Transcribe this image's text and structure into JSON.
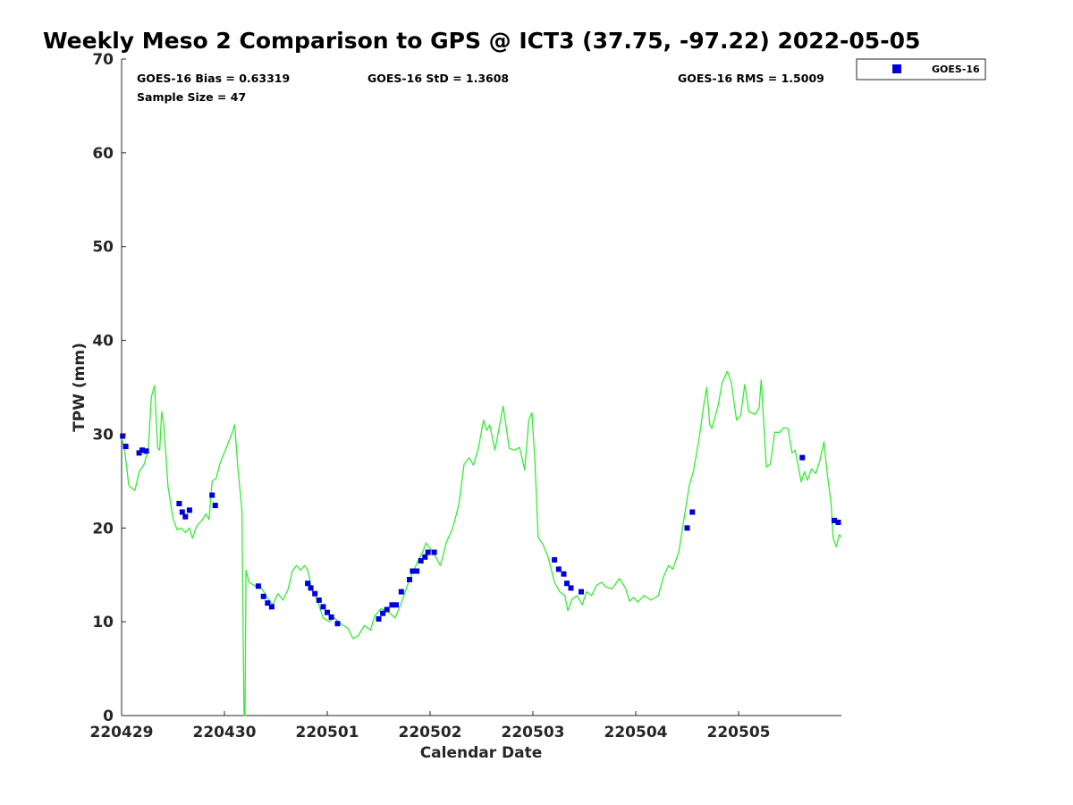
{
  "chart_data": {
    "type": "scatter",
    "title": "Weekly Meso 2 Comparison to GPS @ ICT3 (37.75, -97.22) 2022-05-05",
    "xlabel": "Calendar Date",
    "ylabel": "TPW (mm)",
    "xlim": [
      0,
      7
    ],
    "ylim": [
      0,
      70
    ],
    "x_tick_labels": [
      "220429",
      "220430",
      "220501",
      "220502",
      "220503",
      "220504",
      "220505"
    ],
    "x_tick_values": [
      0,
      1,
      2,
      3,
      4,
      5,
      6
    ],
    "y_ticks": [
      0,
      10,
      20,
      30,
      40,
      50,
      60,
      70
    ],
    "grid": false,
    "legend_position": "top-right",
    "stats": {
      "bias": "GOES-16 Bias = 0.63319",
      "std": "GOES-16 StD = 1.3608",
      "rms": "GOES-16 RMS = 1.5009",
      "sample": "Sample Size = 47"
    },
    "series": [
      {
        "name": "GOES-16",
        "marker": "square",
        "color": "#0000dd",
        "points": [
          [
            0.01,
            29.8
          ],
          [
            0.04,
            28.7
          ],
          [
            0.17,
            28.0
          ],
          [
            0.2,
            28.3
          ],
          [
            0.24,
            28.2
          ],
          [
            0.56,
            22.6
          ],
          [
            0.59,
            21.7
          ],
          [
            0.62,
            21.2
          ],
          [
            0.66,
            21.9
          ],
          [
            0.88,
            23.5
          ],
          [
            0.91,
            22.4
          ],
          [
            1.33,
            13.8
          ],
          [
            1.38,
            12.7
          ],
          [
            1.42,
            12.0
          ],
          [
            1.46,
            11.6
          ],
          [
            1.81,
            14.1
          ],
          [
            1.84,
            13.6
          ],
          [
            1.88,
            13.0
          ],
          [
            1.92,
            12.3
          ],
          [
            1.96,
            11.6
          ],
          [
            2.0,
            11.0
          ],
          [
            2.04,
            10.5
          ],
          [
            2.1,
            9.8
          ],
          [
            2.5,
            10.3
          ],
          [
            2.54,
            10.9
          ],
          [
            2.58,
            11.3
          ],
          [
            2.63,
            11.8
          ],
          [
            2.67,
            11.8
          ],
          [
            2.72,
            13.2
          ],
          [
            2.8,
            14.5
          ],
          [
            2.83,
            15.4
          ],
          [
            2.87,
            15.4
          ],
          [
            2.91,
            16.5
          ],
          [
            2.95,
            16.9
          ],
          [
            2.98,
            17.4
          ],
          [
            3.04,
            17.4
          ],
          [
            4.21,
            16.6
          ],
          [
            4.25,
            15.6
          ],
          [
            4.3,
            15.1
          ],
          [
            4.33,
            14.1
          ],
          [
            4.37,
            13.6
          ],
          [
            4.47,
            13.2
          ],
          [
            5.5,
            20.0
          ],
          [
            5.55,
            21.7
          ],
          [
            6.62,
            27.5
          ],
          [
            6.93,
            20.8
          ],
          [
            6.97,
            20.6
          ]
        ]
      },
      {
        "name": "",
        "kind": "reference-line",
        "color": "#33ee33",
        "points": [
          [
            0.0,
            29.6
          ],
          [
            0.03,
            28.3
          ],
          [
            0.07,
            24.5
          ],
          [
            0.13,
            24.0
          ],
          [
            0.17,
            26.0
          ],
          [
            0.22,
            26.8
          ],
          [
            0.26,
            28.5
          ],
          [
            0.29,
            34.0
          ],
          [
            0.32,
            35.2
          ],
          [
            0.35,
            28.5
          ],
          [
            0.37,
            28.3
          ],
          [
            0.39,
            32.4
          ],
          [
            0.41,
            31.0
          ],
          [
            0.45,
            24.5
          ],
          [
            0.5,
            21.0
          ],
          [
            0.54,
            19.8
          ],
          [
            0.58,
            20.0
          ],
          [
            0.62,
            19.5
          ],
          [
            0.66,
            20.0
          ],
          [
            0.69,
            18.9
          ],
          [
            0.73,
            20.2
          ],
          [
            0.78,
            20.8
          ],
          [
            0.82,
            21.5
          ],
          [
            0.85,
            20.9
          ],
          [
            0.88,
            25.0
          ],
          [
            0.92,
            25.3
          ],
          [
            0.96,
            27.0
          ],
          [
            1.02,
            28.6
          ],
          [
            1.07,
            30.0
          ],
          [
            1.1,
            31.0
          ],
          [
            1.13,
            26.5
          ],
          [
            1.17,
            22.0
          ],
          [
            1.19,
            0.0
          ],
          [
            1.2,
            0.0
          ],
          [
            1.21,
            15.5
          ],
          [
            1.24,
            14.2
          ],
          [
            1.3,
            13.8
          ],
          [
            1.36,
            13.6
          ],
          [
            1.41,
            12.7
          ],
          [
            1.47,
            11.8
          ],
          [
            1.52,
            13.0
          ],
          [
            1.57,
            12.3
          ],
          [
            1.62,
            13.5
          ],
          [
            1.66,
            15.4
          ],
          [
            1.7,
            16.0
          ],
          [
            1.74,
            15.5
          ],
          [
            1.78,
            16.0
          ],
          [
            1.81,
            15.5
          ],
          [
            1.85,
            13.5
          ],
          [
            1.9,
            12.4
          ],
          [
            1.96,
            10.4
          ],
          [
            2.02,
            10.0
          ],
          [
            2.06,
            10.5
          ],
          [
            2.13,
            9.8
          ],
          [
            2.2,
            9.3
          ],
          [
            2.25,
            8.2
          ],
          [
            2.3,
            8.5
          ],
          [
            2.36,
            9.6
          ],
          [
            2.42,
            9.1
          ],
          [
            2.46,
            10.6
          ],
          [
            2.52,
            11.4
          ],
          [
            2.6,
            11.0
          ],
          [
            2.66,
            10.4
          ],
          [
            2.72,
            12.0
          ],
          [
            2.8,
            14.5
          ],
          [
            2.87,
            16.2
          ],
          [
            2.93,
            17.5
          ],
          [
            2.96,
            18.4
          ],
          [
            3.0,
            17.8
          ],
          [
            3.05,
            17.0
          ],
          [
            3.1,
            16.0
          ],
          [
            3.16,
            18.5
          ],
          [
            3.22,
            20.0
          ],
          [
            3.28,
            22.5
          ],
          [
            3.33,
            26.8
          ],
          [
            3.38,
            27.5
          ],
          [
            3.42,
            26.7
          ],
          [
            3.47,
            28.5
          ],
          [
            3.52,
            31.5
          ],
          [
            3.55,
            30.4
          ],
          [
            3.58,
            31.0
          ],
          [
            3.63,
            28.3
          ],
          [
            3.66,
            30.0
          ],
          [
            3.71,
            33.0
          ],
          [
            3.77,
            28.5
          ],
          [
            3.82,
            28.3
          ],
          [
            3.87,
            28.6
          ],
          [
            3.92,
            26.2
          ],
          [
            3.96,
            31.5
          ],
          [
            3.99,
            32.3
          ],
          [
            4.02,
            27.0
          ],
          [
            4.05,
            19.0
          ],
          [
            4.1,
            18.2
          ],
          [
            4.15,
            16.8
          ],
          [
            4.21,
            14.2
          ],
          [
            4.26,
            13.2
          ],
          [
            4.31,
            12.8
          ],
          [
            4.34,
            11.2
          ],
          [
            4.38,
            12.4
          ],
          [
            4.43,
            12.8
          ],
          [
            4.48,
            11.8
          ],
          [
            4.52,
            13.2
          ],
          [
            4.57,
            12.8
          ],
          [
            4.62,
            13.9
          ],
          [
            4.67,
            14.2
          ],
          [
            4.71,
            13.7
          ],
          [
            4.77,
            13.5
          ],
          [
            4.84,
            14.6
          ],
          [
            4.9,
            13.6
          ],
          [
            4.94,
            12.2
          ],
          [
            4.98,
            12.6
          ],
          [
            5.02,
            12.1
          ],
          [
            5.08,
            12.8
          ],
          [
            5.15,
            12.3
          ],
          [
            5.22,
            12.8
          ],
          [
            5.27,
            14.8
          ],
          [
            5.32,
            16.0
          ],
          [
            5.36,
            15.6
          ],
          [
            5.42,
            17.5
          ],
          [
            5.47,
            21.0
          ],
          [
            5.52,
            24.5
          ],
          [
            5.56,
            26.0
          ],
          [
            5.62,
            29.8
          ],
          [
            5.66,
            33.0
          ],
          [
            5.69,
            35.0
          ],
          [
            5.72,
            31.0
          ],
          [
            5.74,
            30.6
          ],
          [
            5.8,
            33.0
          ],
          [
            5.84,
            35.5
          ],
          [
            5.89,
            36.7
          ],
          [
            5.93,
            35.5
          ],
          [
            5.98,
            31.5
          ],
          [
            6.02,
            32.0
          ],
          [
            6.06,
            35.3
          ],
          [
            6.1,
            32.4
          ],
          [
            6.16,
            32.1
          ],
          [
            6.2,
            32.8
          ],
          [
            6.22,
            35.8
          ],
          [
            6.27,
            26.5
          ],
          [
            6.31,
            26.8
          ],
          [
            6.35,
            30.2
          ],
          [
            6.4,
            30.2
          ],
          [
            6.44,
            30.7
          ],
          [
            6.48,
            30.6
          ],
          [
            6.52,
            28.0
          ],
          [
            6.55,
            28.3
          ],
          [
            6.61,
            24.9
          ],
          [
            6.64,
            26.0
          ],
          [
            6.67,
            25.1
          ],
          [
            6.71,
            26.3
          ],
          [
            6.75,
            25.8
          ],
          [
            6.79,
            27.2
          ],
          [
            6.83,
            29.2
          ],
          [
            6.86,
            26.0
          ],
          [
            6.9,
            22.6
          ],
          [
            6.92,
            18.9
          ],
          [
            6.95,
            18.0
          ],
          [
            6.98,
            19.3
          ],
          [
            7.0,
            19.0
          ]
        ]
      }
    ]
  }
}
